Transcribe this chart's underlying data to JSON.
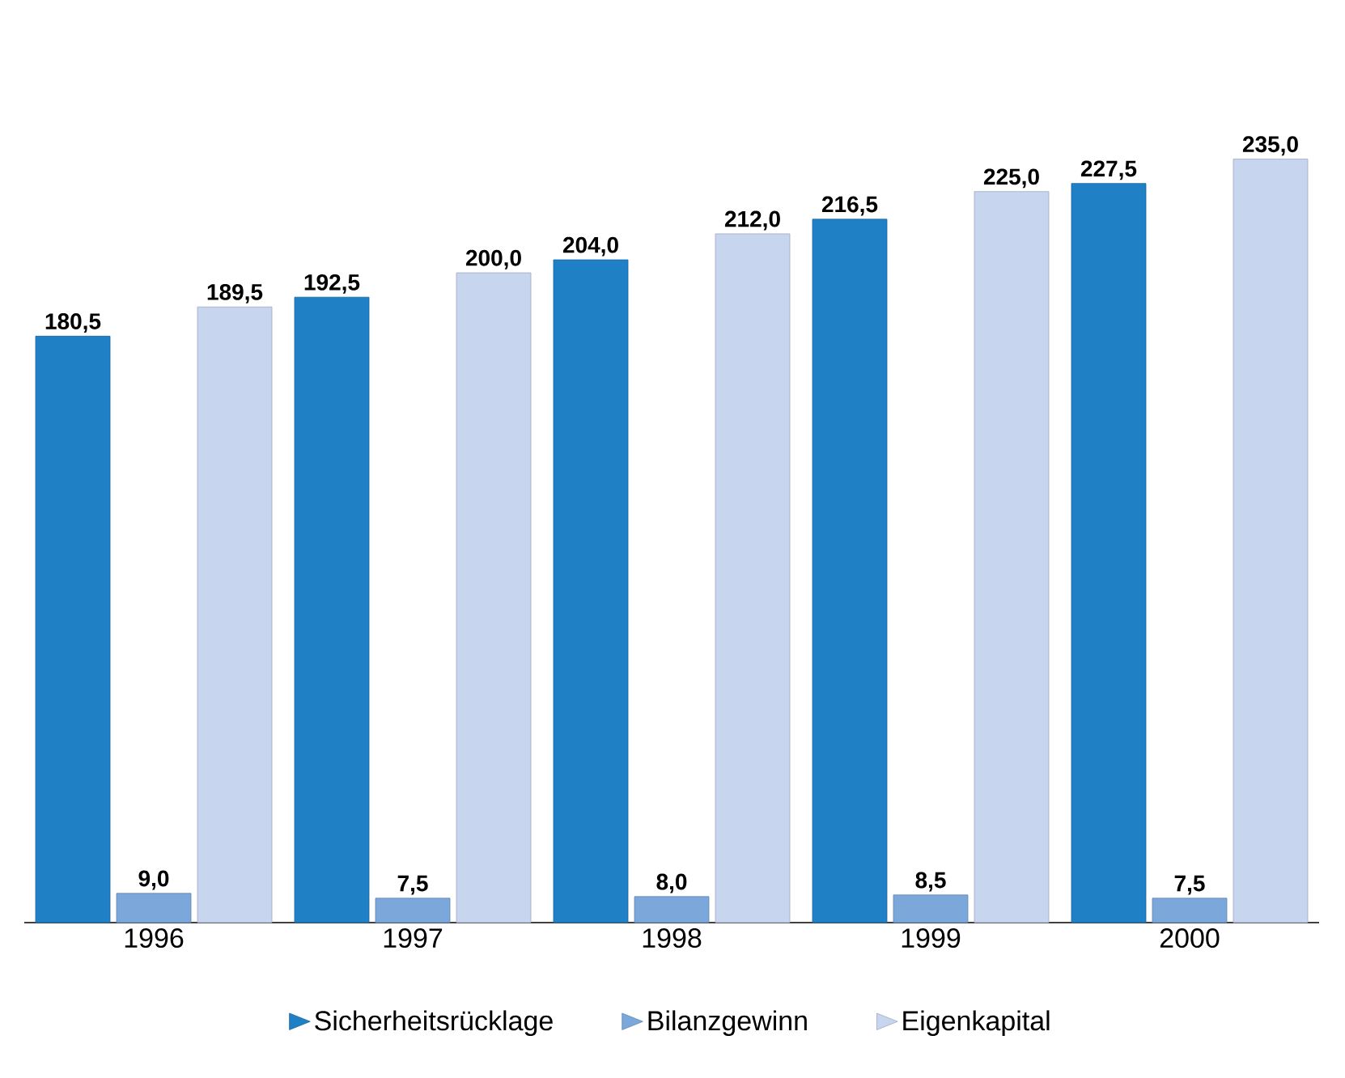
{
  "chart_data": {
    "type": "bar",
    "categories": [
      "1996",
      "1997",
      "1998",
      "1999",
      "2000"
    ],
    "series": [
      {
        "name": "Sicherheitsrücklage",
        "color": "#2080c6",
        "values": [
          180.5,
          192.5,
          204.0,
          216.5,
          227.5
        ],
        "value_labels": [
          "180,5",
          "192,5",
          "204,0",
          "216,5",
          "227,5"
        ]
      },
      {
        "name": "Bilanzgewinn",
        "color": "#7ba7db",
        "values": [
          9.0,
          7.5,
          8.0,
          8.5,
          7.5
        ],
        "value_labels": [
          "9,0",
          "7,5",
          "8,0",
          "8,5",
          "7,5"
        ]
      },
      {
        "name": "Eigenkapital",
        "color": "#c8d5ee",
        "values": [
          189.5,
          200.0,
          212.0,
          225.0,
          235.0
        ],
        "value_labels": [
          "189,5",
          "200,0",
          "212,0",
          "225,0",
          "235,0"
        ]
      }
    ],
    "legend": "bottom"
  }
}
